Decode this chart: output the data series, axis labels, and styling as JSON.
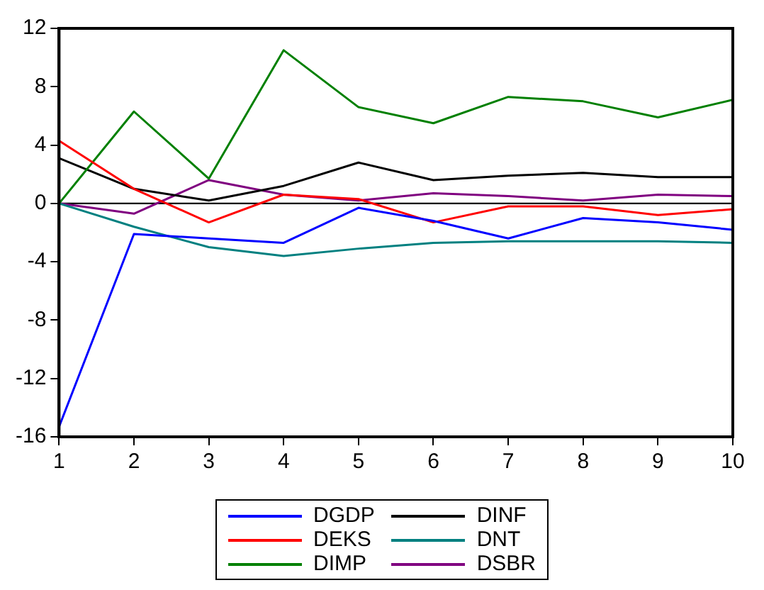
{
  "chart_data": {
    "type": "line",
    "x": [
      1,
      2,
      3,
      4,
      5,
      6,
      7,
      8,
      9,
      10
    ],
    "xlim": [
      1,
      10
    ],
    "xticks": [
      1,
      2,
      3,
      4,
      5,
      6,
      7,
      8,
      9,
      10
    ],
    "ylim": [
      -16,
      12
    ],
    "yticks": [
      -16,
      -12,
      -8,
      -4,
      0,
      4,
      8,
      12
    ],
    "grid": false,
    "legend": "bottom",
    "marker": "none",
    "line_style": "solid",
    "ref_lines": [
      {
        "axis": "y",
        "value": 0,
        "color": "#000000"
      }
    ],
    "series": [
      {
        "name": "DGDP",
        "color": "#0000ff",
        "values": [
          -15.3,
          -2.1,
          -2.4,
          -2.7,
          -0.3,
          -1.2,
          -2.4,
          -1.0,
          -1.3,
          -1.8
        ]
      },
      {
        "name": "DEKS",
        "color": "#ff0000",
        "values": [
          4.3,
          1.0,
          -1.3,
          0.6,
          0.3,
          -1.3,
          -0.2,
          -0.2,
          -0.8,
          -0.4
        ]
      },
      {
        "name": "DIMP",
        "color": "#008000",
        "values": [
          0,
          6.3,
          1.7,
          10.5,
          6.6,
          5.5,
          7.3,
          7.0,
          5.9,
          7.1
        ]
      },
      {
        "name": "DINF",
        "color": "#000000",
        "values": [
          3.1,
          1.0,
          0.2,
          1.2,
          2.8,
          1.6,
          1.9,
          2.1,
          1.8,
          1.8
        ]
      },
      {
        "name": "DNT",
        "color": "#008080",
        "values": [
          0,
          -1.6,
          -3.0,
          -3.6,
          -3.1,
          -2.7,
          -2.6,
          -2.6,
          -2.6,
          -2.7
        ]
      },
      {
        "name": "DSBR",
        "color": "#800080",
        "values": [
          0,
          -0.7,
          1.6,
          0.6,
          0.2,
          0.7,
          0.5,
          0.2,
          0.6,
          0.5
        ]
      }
    ]
  }
}
